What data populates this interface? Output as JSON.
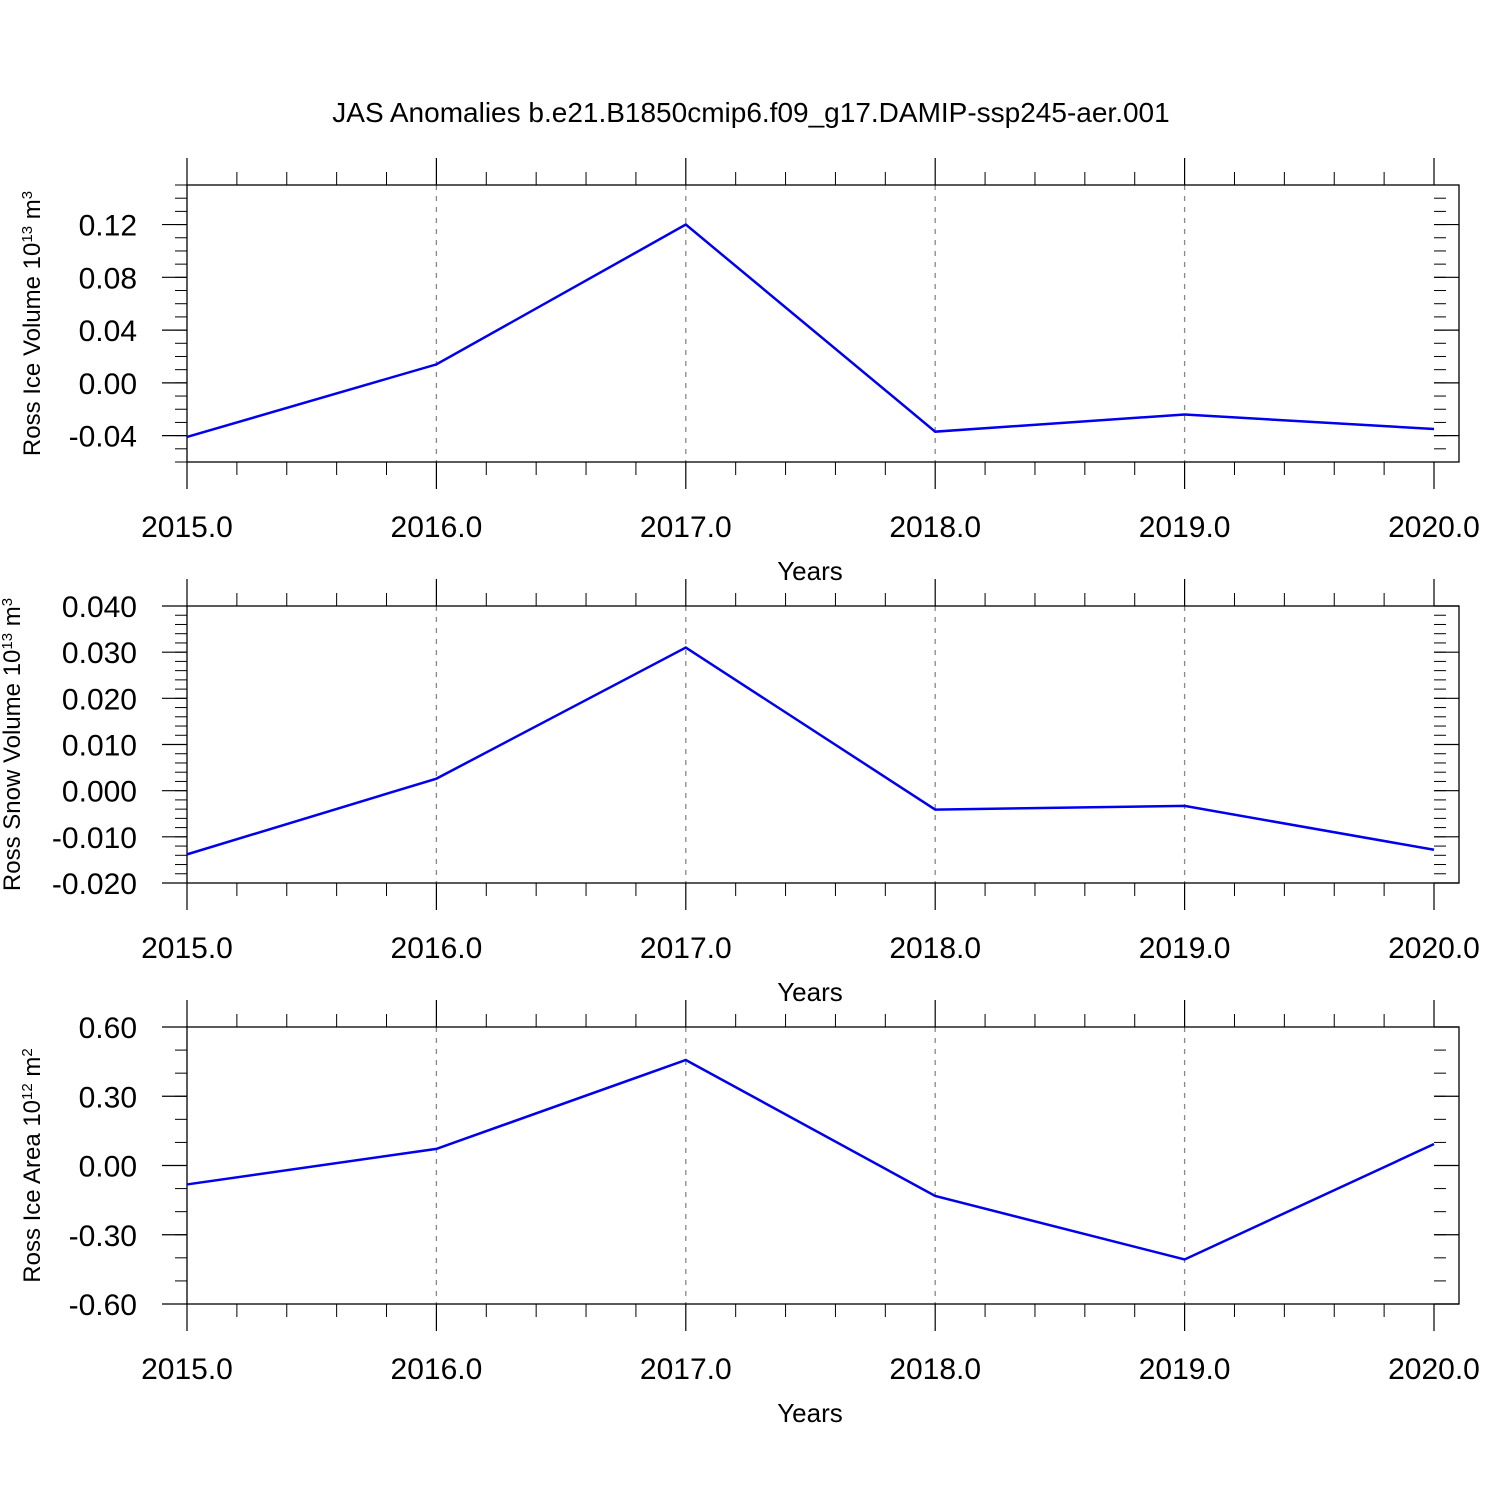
{
  "figure": {
    "title": "JAS Anomalies b.e21.B1850cmip6.f09_g17.DAMIP-ssp245-aer.001"
  },
  "chart_data": [
    {
      "type": "line",
      "xlabel": "Years",
      "ylabel": {
        "main": "Ross Ice Volume 10",
        "exp": "13",
        "unit": " m",
        "unit_exp": "3"
      },
      "x": [
        2015,
        2016,
        2017,
        2018,
        2019,
        2020
      ],
      "x_tick_labels": [
        "2015.0",
        "2016.0",
        "2017.0",
        "2018.0",
        "2019.0",
        "2020.0"
      ],
      "xlim": [
        2015,
        2020
      ],
      "series": [
        {
          "values": [
            -0.041,
            0.014,
            0.12,
            -0.037,
            -0.024,
            -0.035
          ],
          "color": "#0000ee"
        }
      ],
      "ylim": [
        -0.06,
        0.15
      ],
      "y_ticks": [
        -0.04,
        0.0,
        0.04,
        0.08,
        0.12
      ],
      "y_tick_labels": [
        "-0.04",
        "0.00",
        "0.04",
        "0.08",
        "0.12"
      ],
      "y_minor_step": 0.01,
      "grid": "vertical dashed"
    },
    {
      "type": "line",
      "xlabel": "Years",
      "ylabel": {
        "main": "Ross Snow Volume 10",
        "exp": "13",
        "unit": " m",
        "unit_exp": "3"
      },
      "x": [
        2015,
        2016,
        2017,
        2018,
        2019,
        2020
      ],
      "x_tick_labels": [
        "2015.0",
        "2016.0",
        "2017.0",
        "2018.0",
        "2019.0",
        "2020.0"
      ],
      "xlim": [
        2015,
        2020
      ],
      "series": [
        {
          "values": [
            -0.0138,
            0.0026,
            0.031,
            -0.0041,
            -0.0033,
            -0.0128
          ],
          "color": "#0000ee"
        }
      ],
      "ylim": [
        -0.02,
        0.04
      ],
      "y_ticks": [
        -0.02,
        -0.01,
        0.0,
        0.01,
        0.02,
        0.03,
        0.04
      ],
      "y_tick_labels": [
        "-0.020",
        "-0.010",
        "0.000",
        "0.010",
        "0.020",
        "0.030",
        "0.040"
      ],
      "y_minor_step": 0.002,
      "grid": "vertical dashed"
    },
    {
      "type": "line",
      "xlabel": "Years",
      "ylabel": {
        "main": "Ross Ice Area 10",
        "exp": "12",
        "unit": " m",
        "unit_exp": "2"
      },
      "x": [
        2015,
        2016,
        2017,
        2018,
        2019,
        2020
      ],
      "x_tick_labels": [
        "2015.0",
        "2016.0",
        "2017.0",
        "2018.0",
        "2019.0",
        "2020.0"
      ],
      "xlim": [
        2015,
        2020
      ],
      "series": [
        {
          "values": [
            -0.082,
            0.072,
            0.457,
            -0.132,
            -0.407,
            0.093
          ],
          "color": "#0000ee"
        }
      ],
      "ylim": [
        -0.6,
        0.6
      ],
      "y_ticks": [
        -0.6,
        -0.3,
        0.0,
        0.3,
        0.6
      ],
      "y_tick_labels": [
        "-0.60",
        "-0.30",
        "0.00",
        "0.30",
        "0.60"
      ],
      "y_minor_step": 0.1,
      "grid": "vertical dashed"
    }
  ]
}
